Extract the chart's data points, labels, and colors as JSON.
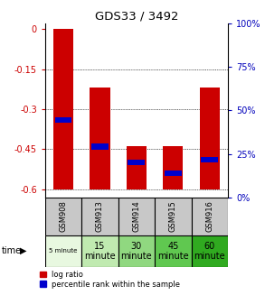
{
  "title": "GDS33 / 3492",
  "samples": [
    "GSM908",
    "GSM913",
    "GSM914",
    "GSM915",
    "GSM916"
  ],
  "time_labels": [
    "5 minute",
    "15\nminute",
    "30\nminute",
    "45\nminute",
    "60\nminute"
  ],
  "time_bg_colors": [
    "#e8f8e0",
    "#c0eab0",
    "#90d880",
    "#60c850",
    "#30aa20"
  ],
  "bar_tops": [
    0.0,
    -0.22,
    -0.44,
    -0.44,
    -0.22
  ],
  "bar_bottoms": [
    -0.6,
    -0.6,
    -0.6,
    -0.6,
    -0.6
  ],
  "percentile_y": [
    -0.34,
    -0.44,
    -0.5,
    -0.54,
    -0.49
  ],
  "yticks_left": [
    0,
    -0.15,
    -0.3,
    -0.45,
    -0.6
  ],
  "yticks_right_pct": [
    100,
    75,
    50,
    25,
    0
  ],
  "bar_color": "#cc0000",
  "percentile_color": "#0000cc",
  "sample_bg": "#c8c8c8",
  "left_label_color": "#cc0000",
  "right_label_color": "#0000bb",
  "ymin": -0.63,
  "ymax": 0.02
}
